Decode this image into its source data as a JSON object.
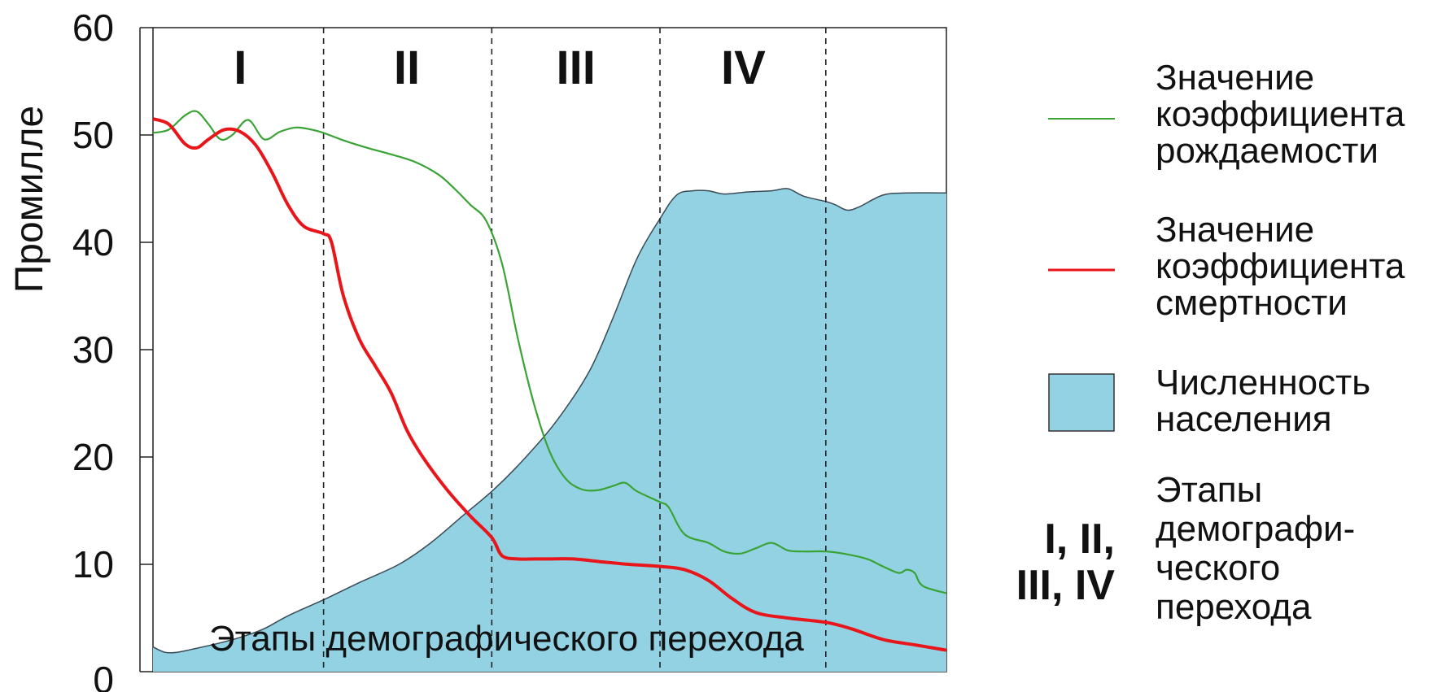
{
  "chart_data": {
    "type": "area",
    "ylabel": "Промилле",
    "xlabel": "Этапы демографического перехода",
    "ylim": [
      0,
      60
    ],
    "y_ticks": [
      "0",
      "10",
      "20",
      "30",
      "40",
      "50",
      "60"
    ],
    "x_range": [
      0,
      100
    ],
    "stage_boundaries": [
      21.5,
      42.7,
      63.9,
      84.8
    ],
    "stages": [
      {
        "label": "I",
        "center": 11
      },
      {
        "label": "II",
        "center": 32
      },
      {
        "label": "III",
        "center": 53.3
      },
      {
        "label": "IV",
        "center": 74.4
      }
    ],
    "colors": {
      "birth": "#3aa335",
      "death": "#e8161a",
      "population_fill": "#92d2e3",
      "population_edge": "#3a4a55"
    },
    "series": [
      {
        "name": "Значение коэффициента рождаемости",
        "kind": "line",
        "x": [
          0,
          2,
          4,
          5.5,
          7,
          8.5,
          10,
          12,
          14,
          16,
          18,
          20,
          21.5,
          24,
          27,
          30,
          33,
          36,
          38,
          40,
          42,
          44,
          46,
          48,
          50,
          52,
          54,
          56,
          58,
          59.5,
          61,
          63.9,
          65,
          67,
          70,
          72,
          74,
          76,
          78,
          80,
          82,
          84.8,
          87,
          90,
          92,
          94,
          95,
          96,
          97,
          100
        ],
        "values": [
          50.2,
          50.5,
          51.8,
          52.2,
          51.0,
          49.6,
          50.0,
          51.4,
          49.6,
          50.3,
          50.7,
          50.5,
          50.2,
          49.5,
          48.8,
          48.2,
          47.5,
          46.3,
          45.0,
          43.5,
          42.0,
          38.0,
          31.0,
          25.0,
          20.5,
          18.0,
          17.0,
          16.9,
          17.3,
          17.6,
          16.8,
          15.8,
          15.3,
          12.8,
          12.0,
          11.2,
          11.0,
          11.5,
          12.0,
          11.3,
          11.2,
          11.2,
          11.0,
          10.5,
          9.8,
          9.2,
          9.5,
          9.2,
          8.0,
          7.3
        ]
      },
      {
        "name": "Значение коэффициента смертности",
        "kind": "line",
        "x": [
          0,
          2,
          4,
          5.5,
          7,
          9,
          11,
          13,
          15,
          17,
          19,
          21.5,
          22.5,
          24,
          26,
          28,
          30,
          32,
          34,
          37,
          40,
          42.7,
          44,
          46,
          48,
          50,
          53,
          57,
          60,
          63.9,
          67,
          70,
          73,
          76,
          80,
          84.8,
          88,
          92,
          96,
          100
        ],
        "values": [
          51.5,
          51.0,
          49.2,
          48.8,
          49.6,
          50.5,
          50.3,
          49.0,
          46.5,
          43.5,
          41.5,
          40.8,
          40.0,
          35.0,
          31.0,
          28.5,
          26.0,
          22.5,
          20.0,
          17.0,
          14.5,
          12.5,
          10.8,
          10.5,
          10.5,
          10.5,
          10.5,
          10.2,
          10.0,
          9.8,
          9.5,
          8.5,
          6.8,
          5.5,
          5.0,
          4.6,
          4.0,
          3.0,
          2.5,
          2.0
        ]
      },
      {
        "name": "Численность населения",
        "kind": "area",
        "x": [
          0,
          1.5,
          3,
          5,
          8,
          11,
          14,
          17,
          21.5,
          26,
          31,
          35,
          39,
          43,
          47,
          51,
          55,
          58,
          61,
          63.9,
          66,
          68,
          70,
          72,
          75,
          78,
          80,
          82,
          84.8,
          86,
          87.5,
          89,
          92,
          95,
          100
        ],
        "values": [
          2.3,
          1.8,
          1.8,
          2.1,
          2.6,
          3.2,
          4.0,
          5.2,
          6.7,
          8.3,
          10.0,
          12.0,
          14.5,
          17.0,
          20.0,
          23.5,
          28.0,
          33.0,
          38.5,
          42.2,
          44.4,
          44.8,
          44.8,
          44.5,
          44.7,
          44.8,
          45.0,
          44.3,
          43.8,
          43.5,
          43.0,
          43.3,
          44.4,
          44.6,
          44.6
        ]
      }
    ],
    "legend": {
      "position": "right",
      "entries": [
        {
          "kind": "line",
          "color": "#3aa335",
          "lines": [
            "Значение",
            "коэффициента",
            "рождаемости"
          ]
        },
        {
          "kind": "line",
          "color": "#e8161a",
          "lines": [
            "Значение",
            "коэффициента",
            "смертности"
          ]
        },
        {
          "kind": "box",
          "color": "#92d2e3",
          "lines": [
            "Численность",
            "населения"
          ]
        },
        {
          "kind": "roman",
          "symbol_lines": [
            "I, II,",
            "III, IV"
          ],
          "lines": [
            "Этапы",
            "демографи-",
            "ческого",
            "перехода"
          ]
        }
      ]
    },
    "grid": false
  }
}
